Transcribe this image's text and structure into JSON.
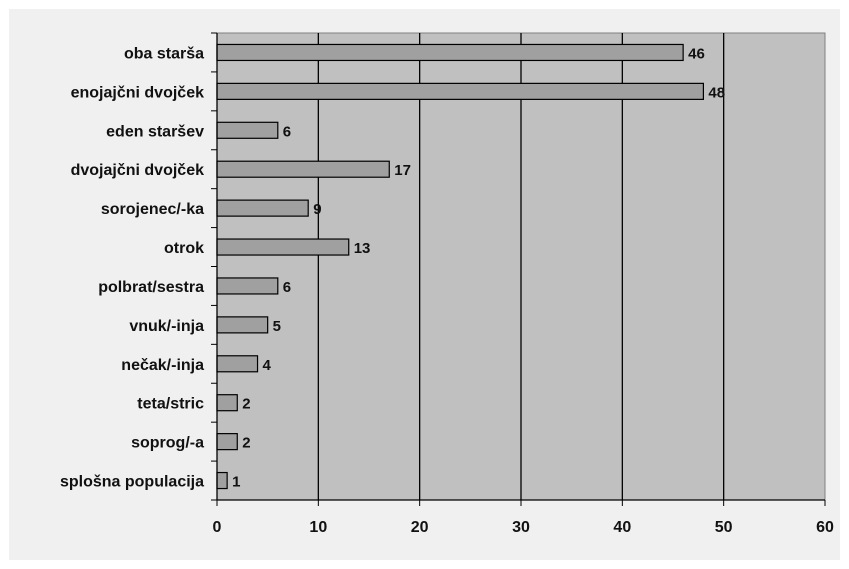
{
  "chart_data": {
    "type": "bar",
    "orientation": "horizontal",
    "title": "",
    "xlabel": "",
    "ylabel": "",
    "categories": [
      "oba starša",
      "enojajčni dvojček",
      "eden staršev",
      "dvojajčni dvojček",
      "sorojenec/-ka",
      "otrok",
      "polbrat/sestra",
      "vnuk/-inja",
      "nečak/-inja",
      "teta/stric",
      "soprog/-a",
      "splošna populacija"
    ],
    "values": [
      46,
      48,
      6,
      17,
      9,
      13,
      6,
      5,
      4,
      2,
      2,
      1
    ],
    "data_labels": [
      "46",
      "48",
      "6",
      "17",
      "9",
      "13",
      "6",
      "5",
      "4",
      "2",
      "2",
      "1"
    ],
    "xlim": [
      0,
      60
    ],
    "xticks": [
      "0",
      "10",
      "20",
      "30",
      "40",
      "50",
      "60"
    ],
    "grid": "vertical",
    "legend": "none",
    "colors": {
      "bar": "#a0a0a0",
      "bar_stroke": "#000000",
      "plot_background": "#c0c0c0",
      "frame_background": "#f0f0f0",
      "gridline": "#000000"
    }
  }
}
